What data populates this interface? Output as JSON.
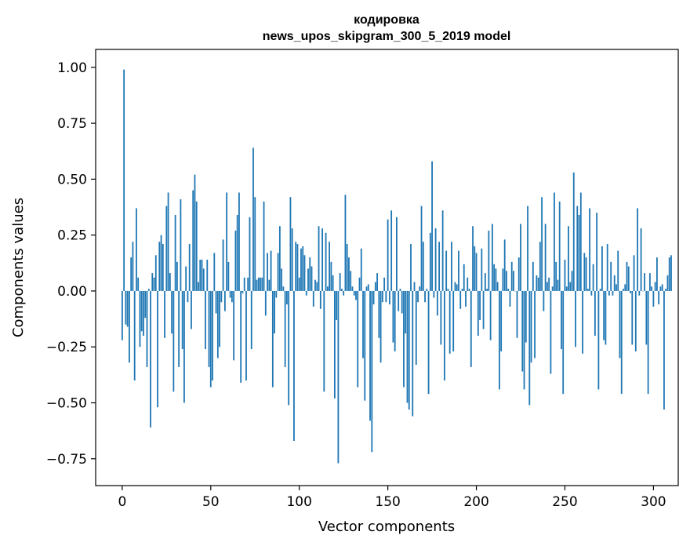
{
  "chart_data": {
    "type": "bar",
    "title_line1": "кодировка",
    "title_line2": "news_upos_skipgram_300_5_2019 model",
    "xlabel": "Vector components",
    "ylabel": "Components values",
    "xlim": [
      -15,
      314
    ],
    "ylim": [
      -0.87,
      1.08
    ],
    "xticks": [
      0,
      50,
      100,
      150,
      200,
      250,
      300
    ],
    "yticks": [
      -0.75,
      -0.5,
      -0.25,
      0.0,
      0.25,
      0.5,
      0.75,
      1.0
    ],
    "ytick_labels": [
      "−0.75",
      "−0.50",
      "−0.25",
      "0.00",
      "0.25",
      "0.50",
      "0.75",
      "1.00"
    ],
    "bar_color": "#1f77b4",
    "grid": false,
    "x_start": 0,
    "values": [
      -0.22,
      0.99,
      -0.15,
      -0.16,
      -0.32,
      0.15,
      0.22,
      -0.4,
      0.37,
      0.06,
      -0.25,
      -0.18,
      -0.2,
      -0.12,
      -0.34,
      0.01,
      -0.61,
      0.08,
      0.06,
      0.16,
      -0.52,
      0.22,
      0.25,
      0.21,
      -0.21,
      0.38,
      0.44,
      0.08,
      -0.19,
      -0.45,
      0.34,
      0.13,
      -0.34,
      0.41,
      -0.26,
      -0.5,
      0.11,
      -0.05,
      0.21,
      -0.17,
      0.45,
      0.52,
      0.4,
      0.04,
      0.14,
      0.14,
      0.1,
      -0.26,
      0.14,
      -0.34,
      -0.43,
      -0.4,
      0.17,
      -0.1,
      -0.3,
      -0.25,
      -0.05,
      0.23,
      -0.09,
      0.44,
      0.13,
      -0.03,
      -0.05,
      -0.31,
      0.27,
      0.34,
      0.44,
      -0.41,
      -0.01,
      0.06,
      -0.4,
      0.06,
      0.33,
      -0.26,
      0.64,
      0.42,
      0.05,
      0.06,
      0.06,
      0.06,
      0.4,
      -0.11,
      0.17,
      0.05,
      0.18,
      -0.43,
      -0.19,
      -0.03,
      0.17,
      0.29,
      0.1,
      0.02,
      -0.34,
      -0.06,
      -0.51,
      0.42,
      0.28,
      -0.67,
      0.22,
      0.21,
      0.06,
      0.19,
      0.2,
      0.16,
      -0.02,
      0.1,
      0.15,
      0.11,
      -0.07,
      0.05,
      0.04,
      0.29,
      -0.08,
      0.28,
      -0.45,
      0.26,
      0.02,
      0.22,
      0.13,
      0.07,
      -0.48,
      -0.13,
      -0.77,
      0.08,
      0.01,
      -0.02,
      0.43,
      0.21,
      0.15,
      0.09,
      0.02,
      -0.02,
      -0.04,
      -0.43,
      0.06,
      0.19,
      -0.3,
      -0.49,
      0.02,
      0.03,
      -0.58,
      -0.72,
      -0.06,
      0.04,
      0.08,
      -0.21,
      -0.32,
      -0.05,
      0.06,
      -0.05,
      0.32,
      -0.06,
      0.36,
      -0.23,
      -0.27,
      0.33,
      -0.09,
      0.01,
      -0.1,
      -0.43,
      -0.19,
      -0.5,
      -0.53,
      0.21,
      -0.56,
      0.04,
      -0.33,
      -0.05,
      0.02,
      0.38,
      0.22,
      -0.05,
      0.01,
      -0.46,
      0.26,
      0.58,
      -0.03,
      0.28,
      -0.11,
      0.22,
      -0.24,
      0.36,
      -0.4,
      0.18,
      0.01,
      -0.28,
      0.22,
      -0.27,
      0.04,
      0.03,
      0.18,
      -0.08,
      0.01,
      0.12,
      -0.07,
      0.06,
      0.01,
      -0.34,
      0.29,
      0.2,
      0.17,
      -0.2,
      -0.13,
      0.19,
      -0.17,
      0.08,
      0.01,
      0.27,
      -0.22,
      0.3,
      0.12,
      0.1,
      0.04,
      -0.44,
      -0.27,
      0.1,
      0.23,
      0.09,
      0.01,
      -0.07,
      0.13,
      0.09,
      0.0,
      -0.21,
      0.15,
      0.3,
      -0.36,
      -0.44,
      -0.23,
      0.38,
      -0.51,
      -0.32,
      0.13,
      -0.3,
      0.07,
      0.06,
      0.22,
      0.42,
      -0.09,
      0.3,
      0.04,
      0.06,
      -0.37,
      0.02,
      0.44,
      0.13,
      0.05,
      0.4,
      -0.26,
      -0.46,
      0.14,
      0.02,
      0.29,
      0.04,
      0.09,
      0.53,
      -0.25,
      0.38,
      0.34,
      0.44,
      -0.28,
      0.17,
      0.15,
      0.01,
      0.37,
      -0.02,
      0.12,
      -0.2,
      0.35,
      -0.44,
      0.01,
      0.2,
      -0.22,
      -0.24,
      0.21,
      -0.02,
      0.13,
      -0.02,
      0.07,
      0.03,
      0.18,
      -0.3,
      -0.46,
      0.01,
      0.03,
      0.13,
      0.11,
      -0.01,
      -0.24,
      0.16,
      -0.27,
      0.37,
      -0.02,
      0.28,
      0.0,
      0.08,
      -0.24,
      -0.46,
      0.08,
      0.02,
      -0.07,
      0.04,
      0.15,
      -0.06,
      0.02,
      0.03,
      -0.53,
      0.01,
      0.07,
      0.15,
      0.16
    ]
  }
}
